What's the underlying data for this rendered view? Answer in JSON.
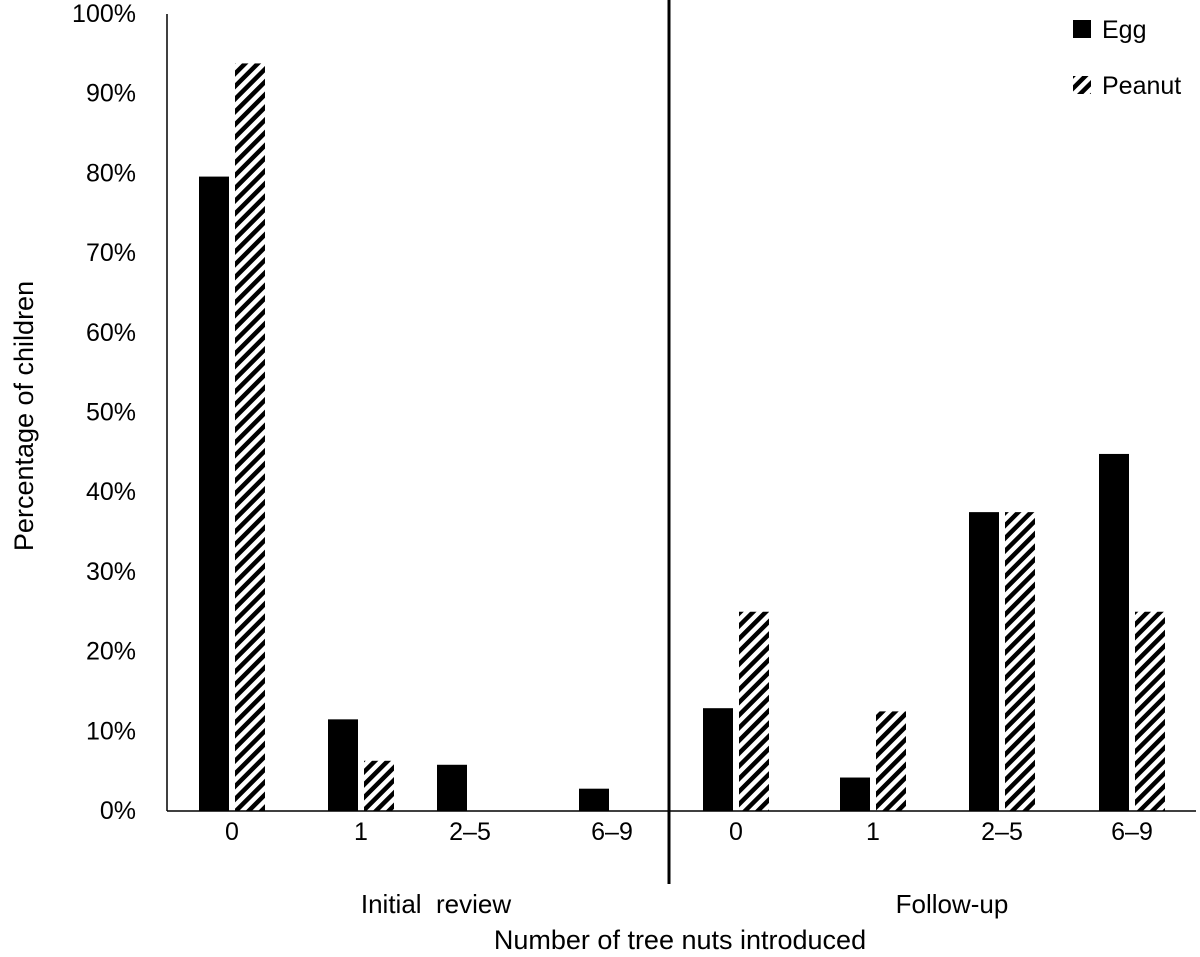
{
  "chart_data": {
    "type": "bar",
    "title": "",
    "xlabel": "Number of tree nuts introduced",
    "ylabel": "Percentage of children",
    "ylim": [
      0,
      100
    ],
    "yticks": [
      "0%",
      "10%",
      "20%",
      "30%",
      "40%",
      "50%",
      "60%",
      "70%",
      "80%",
      "90%",
      "100%"
    ],
    "grid": false,
    "legend_position": "top-right",
    "groups": [
      {
        "label": "Initial  review",
        "categories": [
          "0",
          "1",
          "2–5",
          "6–9"
        ]
      },
      {
        "label": "Follow-up",
        "categories": [
          "0",
          "1",
          "2–5",
          "6–9"
        ]
      }
    ],
    "series": [
      {
        "name": "Egg",
        "fill": "solid",
        "color": "#000000",
        "values": [
          79.6,
          11.5,
          5.8,
          2.8,
          12.9,
          4.2,
          37.5,
          44.8
        ]
      },
      {
        "name": "Peanut",
        "fill": "hatched",
        "color": "#000000",
        "values": [
          93.8,
          6.3,
          0,
          0,
          25.0,
          12.5,
          37.5,
          25.0
        ]
      }
    ]
  }
}
